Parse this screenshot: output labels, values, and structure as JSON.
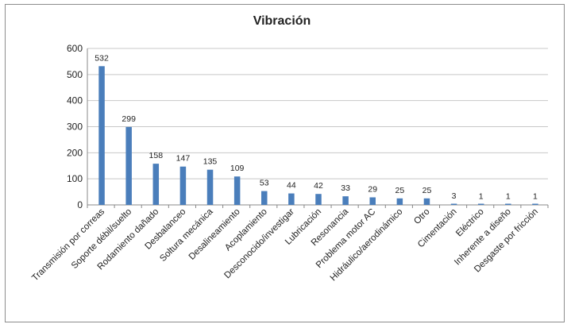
{
  "chart_data": {
    "type": "bar",
    "title": "Vibración",
    "categories": [
      "Transmisión por correas",
      "Soporte débil/suelto",
      "Rodamiento dañado",
      "Desbalanceo",
      "Soltura mecánica",
      "Desalineamiento",
      "Acoplamiento",
      "Desconocido/investigar",
      "Lubricación",
      "Resonancia",
      "Problema motor AC",
      "Hidráulico/aerodinámico",
      "Otro",
      "Cimentación",
      "Eléctrico",
      "Inherente a diseño",
      "Desgaste por fricción"
    ],
    "values": [
      532,
      299,
      158,
      147,
      135,
      109,
      53,
      44,
      42,
      33,
      29,
      25,
      25,
      3,
      1,
      1,
      1
    ],
    "ylim": [
      0,
      600
    ],
    "yticks": [
      "0",
      "100",
      "200",
      "300",
      "400",
      "500",
      "600"
    ],
    "xlabel": "",
    "ylabel": "",
    "grid": true,
    "legend": "none",
    "bar_color": "#4a7ebb"
  }
}
